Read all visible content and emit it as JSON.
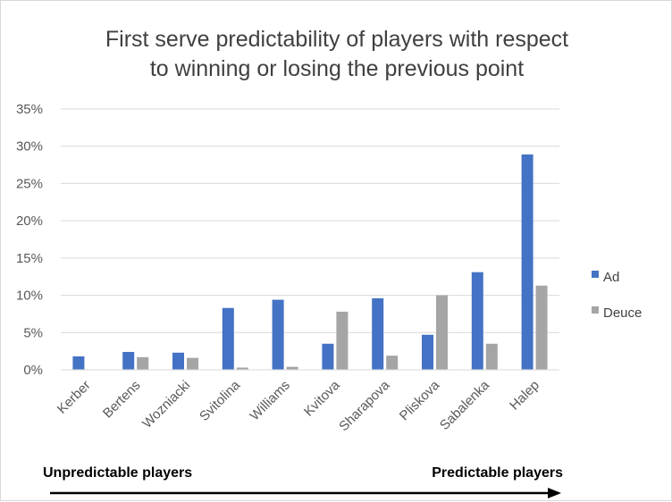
{
  "chart_data": {
    "type": "bar",
    "title_lines": [
      "First serve predictability of players with respect",
      "to winning or losing the previous point"
    ],
    "xlabel": "",
    "ylabel": "",
    "categories": [
      "Kerber",
      "Bertens",
      "Wozniacki",
      "Svitolina",
      "Williams",
      "Kvitova",
      "Sharapova",
      "Pliskova",
      "Sabalenka",
      "Halep"
    ],
    "series": [
      {
        "name": "Ad",
        "color": "#4472c4",
        "values": [
          1.8,
          2.4,
          2.3,
          8.3,
          9.4,
          3.5,
          9.6,
          4.7,
          13.1,
          28.9
        ]
      },
      {
        "name": "Deuce",
        "color": "#a5a5a5",
        "values": [
          0.0,
          1.7,
          1.6,
          0.3,
          0.4,
          7.8,
          1.9,
          10.0,
          3.5,
          11.3
        ]
      }
    ],
    "ylim": [
      0,
      35
    ],
    "yticks": [
      0,
      5,
      10,
      15,
      20,
      25,
      30,
      35
    ],
    "ytick_labels": [
      "0%",
      "5%",
      "10%",
      "15%",
      "20%",
      "25%",
      "30%",
      "35%"
    ],
    "grid": true,
    "legend_position": "right",
    "bottom_labels": {
      "left": "Unpredictable players",
      "right": "Predictable players"
    },
    "arrow_direction": "right"
  }
}
